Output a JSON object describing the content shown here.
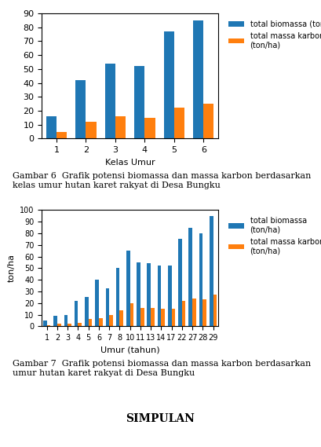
{
  "chart_data": [
    {
      "type": "bar",
      "categories": [
        "1",
        "2",
        "3",
        "4",
        "5",
        "6"
      ],
      "series": [
        {
          "name": "total biomassa (ton/ha)",
          "values": [
            16,
            42,
            54,
            52,
            77,
            85
          ]
        },
        {
          "name": "total massa karbon\n(ton/ha)",
          "values": [
            5,
            12,
            16,
            15,
            22,
            25
          ]
        }
      ],
      "x_label": "Kelas Umur",
      "ylim": [
        0,
        90
      ],
      "yticks": [
        0,
        10,
        20,
        30,
        40,
        50,
        60,
        70,
        80,
        90
      ],
      "legend": "upper left",
      "caption": "Gambar 6  Grafik potensi biomassa dan massa karbon berdasarkan kelas umur hutan karet rakyat di Desa Bungku"
    },
    {
      "type": "bar",
      "categories": [
        "1",
        "2",
        "3",
        "4",
        "5",
        "6",
        "7",
        "8",
        "10",
        "11",
        "13",
        "14",
        "17",
        "22",
        "27",
        "28",
        "29"
      ],
      "series": [
        {
          "name": "total biomassa\n(ton/ha)",
          "values": [
            5,
            9,
            10,
            22,
            25,
            40,
            33,
            50,
            65,
            55,
            54,
            52,
            52,
            75,
            85,
            80,
            95
          ]
        },
        {
          "name": "total massa karbon\n(ton/ha)",
          "values": [
            1,
            2,
            2,
            3,
            6,
            7,
            10,
            14,
            20,
            16,
            16,
            15,
            15,
            22,
            24,
            23,
            27
          ]
        }
      ],
      "x_label": "Umur (tahun)",
      "y_label": "ton/ha",
      "ylim": [
        0,
        100
      ],
      "yticks": [
        0,
        10,
        20,
        30,
        40,
        50,
        60,
        70,
        80,
        90,
        100
      ],
      "legend": "upper left",
      "caption": "Gambar 7  Grafik potensi biomassa dan massa karbon berdasarkan umur hutan karet rakyat di Desa Bungku"
    }
  ],
  "annotations": [
    "SIMPULAN"
  ]
}
